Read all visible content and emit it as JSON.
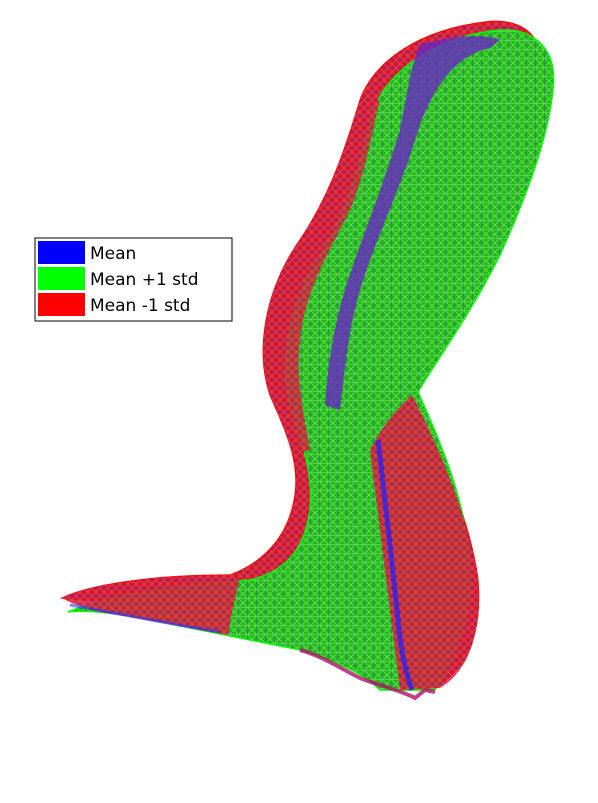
{
  "legend": {
    "items": [
      {
        "label": "Mean",
        "color": "#0000ff"
      },
      {
        "label": "Mean +1 std",
        "color": "#00ff00"
      },
      {
        "label": "Mean -1 std",
        "color": "#ff0000"
      }
    ]
  },
  "colors": {
    "mean": "#0000ff",
    "plus_std": "#00ff00",
    "minus_std": "#ff0000",
    "background": "#ffffff"
  }
}
